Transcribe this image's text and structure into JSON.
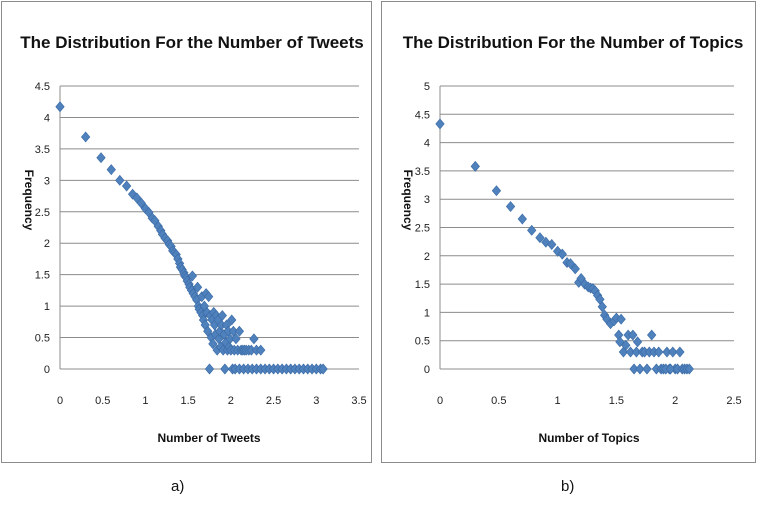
{
  "chart_data": [
    {
      "type": "scatter",
      "title": "The Distribution For the Number of Tweets",
      "xlabel": "Number of Tweets",
      "ylabel": "Frequency",
      "xlim": [
        0,
        3.5
      ],
      "ylim": [
        0,
        4.5
      ],
      "x_ticks": [
        "0",
        "0.5",
        "1",
        "1.5",
        "2",
        "2.5",
        "3",
        "3.5"
      ],
      "y_ticks": [
        "0",
        "0.5",
        "1",
        "1.5",
        "2",
        "2.5",
        "3",
        "3.5",
        "4",
        "4.5"
      ],
      "grid": "horizontal",
      "marker": "diamond",
      "marker_color": "#4f81bd",
      "caption": "a)",
      "points": [
        [
          0.0,
          4.17
        ],
        [
          0.3,
          3.69
        ],
        [
          0.48,
          3.36
        ],
        [
          0.6,
          3.17
        ],
        [
          0.7,
          3.0
        ],
        [
          0.78,
          2.91
        ],
        [
          0.85,
          2.78
        ],
        [
          0.9,
          2.72
        ],
        [
          0.95,
          2.64
        ],
        [
          1.0,
          2.55
        ],
        [
          1.04,
          2.49
        ],
        [
          1.08,
          2.4
        ],
        [
          1.11,
          2.36
        ],
        [
          1.15,
          2.27
        ],
        [
          1.18,
          2.2
        ],
        [
          1.2,
          2.14
        ],
        [
          1.23,
          2.08
        ],
        [
          1.26,
          2.04
        ],
        [
          1.28,
          1.98
        ],
        [
          1.3,
          1.95
        ],
        [
          1.32,
          1.88
        ],
        [
          1.34,
          1.85
        ],
        [
          1.36,
          1.82
        ],
        [
          1.38,
          1.75
        ],
        [
          1.4,
          1.68
        ],
        [
          1.41,
          1.62
        ],
        [
          1.43,
          1.58
        ],
        [
          1.45,
          1.53
        ],
        [
          1.46,
          1.48
        ],
        [
          1.48,
          1.45
        ],
        [
          1.49,
          1.4
        ],
        [
          1.51,
          1.35
        ],
        [
          1.52,
          1.3
        ],
        [
          1.54,
          1.25
        ],
        [
          1.55,
          1.48
        ],
        [
          1.56,
          1.2
        ],
        [
          1.58,
          1.15
        ],
        [
          1.6,
          1.1
        ],
        [
          1.61,
          1.3
        ],
        [
          1.62,
          1.0
        ],
        [
          1.63,
          0.95
        ],
        [
          1.65,
          0.9
        ],
        [
          1.66,
          1.15
        ],
        [
          1.67,
          0.85
        ],
        [
          1.68,
          0.78
        ],
        [
          1.69,
          1.0
        ],
        [
          1.7,
          0.7
        ],
        [
          1.71,
          1.2
        ],
        [
          1.72,
          0.9
        ],
        [
          1.73,
          0.6
        ],
        [
          1.74,
          1.15
        ],
        [
          1.75,
          0.0
        ],
        [
          1.76,
          0.85
        ],
        [
          1.77,
          0.5
        ],
        [
          1.78,
          0.78
        ],
        [
          1.79,
          0.4
        ],
        [
          1.8,
          0.9
        ],
        [
          1.81,
          0.7
        ],
        [
          1.82,
          0.55
        ],
        [
          1.83,
          0.85
        ],
        [
          1.84,
          0.3
        ],
        [
          1.85,
          0.78
        ],
        [
          1.86,
          0.48
        ],
        [
          1.87,
          0.6
        ],
        [
          1.88,
          0.35
        ],
        [
          1.89,
          0.7
        ],
        [
          1.9,
          0.85
        ],
        [
          1.91,
          0.3
        ],
        [
          1.92,
          0.55
        ],
        [
          1.93,
          0.0
        ],
        [
          1.94,
          0.42
        ],
        [
          1.95,
          0.7
        ],
        [
          1.96,
          0.3
        ],
        [
          1.97,
          0.6
        ],
        [
          1.98,
          0.35
        ],
        [
          1.99,
          0.48
        ],
        [
          2.0,
          0.3
        ],
        [
          2.01,
          0.78
        ],
        [
          2.02,
          0.0
        ],
        [
          2.03,
          0.6
        ],
        [
          2.04,
          0.3
        ],
        [
          2.06,
          0.48
        ],
        [
          2.08,
          0.3
        ],
        [
          2.1,
          0.6
        ],
        [
          2.12,
          0.3
        ],
        [
          2.14,
          0.3
        ],
        [
          2.16,
          0.3
        ],
        [
          2.18,
          0.3
        ],
        [
          2.21,
          0.3
        ],
        [
          2.24,
          0.3
        ],
        [
          2.27,
          0.48
        ],
        [
          2.3,
          0.3
        ],
        [
          2.35,
          0.3
        ],
        [
          2.05,
          0.0
        ],
        [
          2.1,
          0.0
        ],
        [
          2.15,
          0.0
        ],
        [
          2.2,
          0.0
        ],
        [
          2.25,
          0.0
        ],
        [
          2.3,
          0.0
        ],
        [
          2.35,
          0.0
        ],
        [
          2.4,
          0.0
        ],
        [
          2.45,
          0.0
        ],
        [
          2.5,
          0.0
        ],
        [
          2.55,
          0.0
        ],
        [
          2.6,
          0.0
        ],
        [
          2.65,
          0.0
        ],
        [
          2.7,
          0.0
        ],
        [
          2.75,
          0.0
        ],
        [
          2.8,
          0.0
        ],
        [
          2.85,
          0.0
        ],
        [
          2.9,
          0.0
        ],
        [
          2.95,
          0.0
        ],
        [
          3.0,
          0.0
        ],
        [
          3.05,
          0.0
        ],
        [
          3.08,
          0.0
        ]
      ]
    },
    {
      "type": "scatter",
      "title": "The Distribution For the Number of Topics",
      "xlabel": "Number of Topics",
      "ylabel": "Frequency",
      "xlim": [
        0,
        2.5
      ],
      "ylim": [
        0,
        5
      ],
      "x_ticks": [
        "0",
        "0.5",
        "1",
        "1.5",
        "2",
        "2.5"
      ],
      "y_ticks": [
        "0",
        "0.5",
        "1",
        "1.5",
        "2",
        "2.5",
        "3",
        "3.5",
        "4",
        "4.5",
        "5"
      ],
      "grid": "horizontal",
      "marker": "diamond",
      "marker_color": "#4f81bd",
      "caption": "b)",
      "points": [
        [
          0.0,
          4.33
        ],
        [
          0.3,
          3.58
        ],
        [
          0.48,
          3.15
        ],
        [
          0.6,
          2.87
        ],
        [
          0.7,
          2.65
        ],
        [
          0.78,
          2.45
        ],
        [
          0.85,
          2.32
        ],
        [
          0.9,
          2.24
        ],
        [
          0.95,
          2.2
        ],
        [
          1.0,
          2.08
        ],
        [
          1.04,
          2.03
        ],
        [
          1.08,
          1.88
        ],
        [
          1.11,
          1.86
        ],
        [
          1.15,
          1.77
        ],
        [
          1.18,
          1.53
        ],
        [
          1.2,
          1.6
        ],
        [
          1.23,
          1.5
        ],
        [
          1.26,
          1.45
        ],
        [
          1.28,
          1.43
        ],
        [
          1.3,
          1.42
        ],
        [
          1.32,
          1.38
        ],
        [
          1.34,
          1.3
        ],
        [
          1.36,
          1.23
        ],
        [
          1.38,
          1.1
        ],
        [
          1.4,
          0.95
        ],
        [
          1.42,
          0.88
        ],
        [
          1.45,
          0.8
        ],
        [
          1.48,
          0.85
        ],
        [
          1.5,
          0.9
        ],
        [
          1.52,
          0.6
        ],
        [
          1.53,
          0.48
        ],
        [
          1.54,
          0.88
        ],
        [
          1.56,
          0.3
        ],
        [
          1.58,
          0.42
        ],
        [
          1.6,
          0.6
        ],
        [
          1.62,
          0.3
        ],
        [
          1.64,
          0.6
        ],
        [
          1.65,
          0.0
        ],
        [
          1.67,
          0.3
        ],
        [
          1.68,
          0.48
        ],
        [
          1.7,
          0.0
        ],
        [
          1.72,
          0.3
        ],
        [
          1.74,
          0.3
        ],
        [
          1.76,
          0.0
        ],
        [
          1.78,
          0.3
        ],
        [
          1.8,
          0.6
        ],
        [
          1.82,
          0.3
        ],
        [
          1.84,
          0.0
        ],
        [
          1.86,
          0.3
        ],
        [
          1.88,
          0.0
        ],
        [
          1.9,
          0.0
        ],
        [
          1.93,
          0.3
        ],
        [
          1.95,
          0.0
        ],
        [
          1.98,
          0.3
        ],
        [
          2.0,
          0.0
        ],
        [
          2.04,
          0.3
        ],
        [
          1.92,
          0.0
        ],
        [
          1.96,
          0.0
        ],
        [
          2.02,
          0.0
        ],
        [
          2.06,
          0.0
        ],
        [
          2.08,
          0.0
        ],
        [
          2.1,
          0.0
        ],
        [
          2.12,
          0.0
        ]
      ]
    }
  ]
}
